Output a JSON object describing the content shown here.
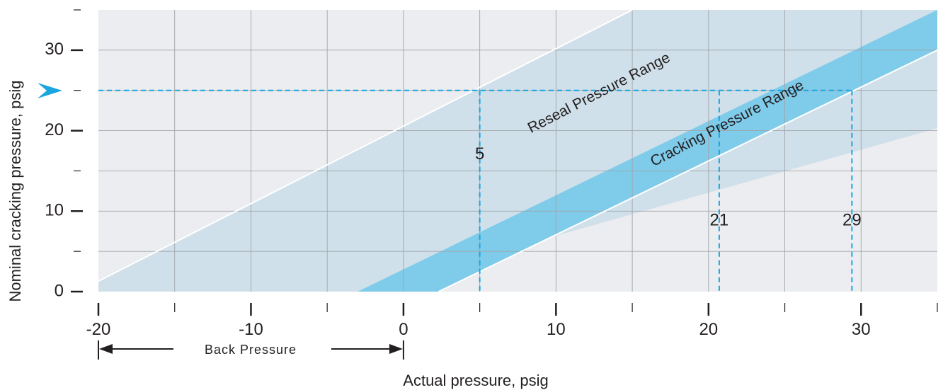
{
  "chart_data": {
    "type": "area",
    "title": "",
    "xlabel": "Actual pressure, psig",
    "ylabel": "Nominal cracking pressure, psig",
    "xlim": [
      -20,
      35
    ],
    "ylim": [
      0,
      35
    ],
    "x_ticks": [
      -20,
      -10,
      0,
      10,
      20,
      30
    ],
    "x_tick_labels": [
      "-20",
      "-10",
      "0",
      "10",
      "20",
      "30"
    ],
    "y_ticks": [
      0,
      10,
      20,
      30
    ],
    "y_tick_labels": [
      "0",
      "10",
      "20",
      "30"
    ],
    "grid": true,
    "bands": [
      {
        "name": "Reseal Pressure Range",
        "color": "#cfe0ea",
        "upper": {
          "x": [
            -20,
            15
          ],
          "y": [
            1.3,
            35
          ]
        },
        "lower": {
          "x": [
            -3,
            35
          ],
          "y": [
            0,
            20.3
          ]
        }
      },
      {
        "name": "Cracking Pressure Range",
        "color": "#7fcbea",
        "upper": {
          "x": [
            -3,
            35
          ],
          "y": [
            0,
            35
          ]
        },
        "lower": {
          "x": [
            2.3,
            35
          ],
          "y": [
            0,
            30
          ]
        }
      }
    ],
    "example": {
      "nominal_cracking_pressure": 25,
      "color": "#1aa6df",
      "markers": [
        {
          "x": 5,
          "label": "5"
        },
        {
          "x": 20.7,
          "label": "21"
        },
        {
          "x": 29.4,
          "label": "29"
        }
      ]
    },
    "annotations": {
      "back_pressure": "Back Pressure",
      "reseal_label": "Reseal Pressure Range",
      "cracking_label": "Cracking Pressure Range"
    }
  }
}
